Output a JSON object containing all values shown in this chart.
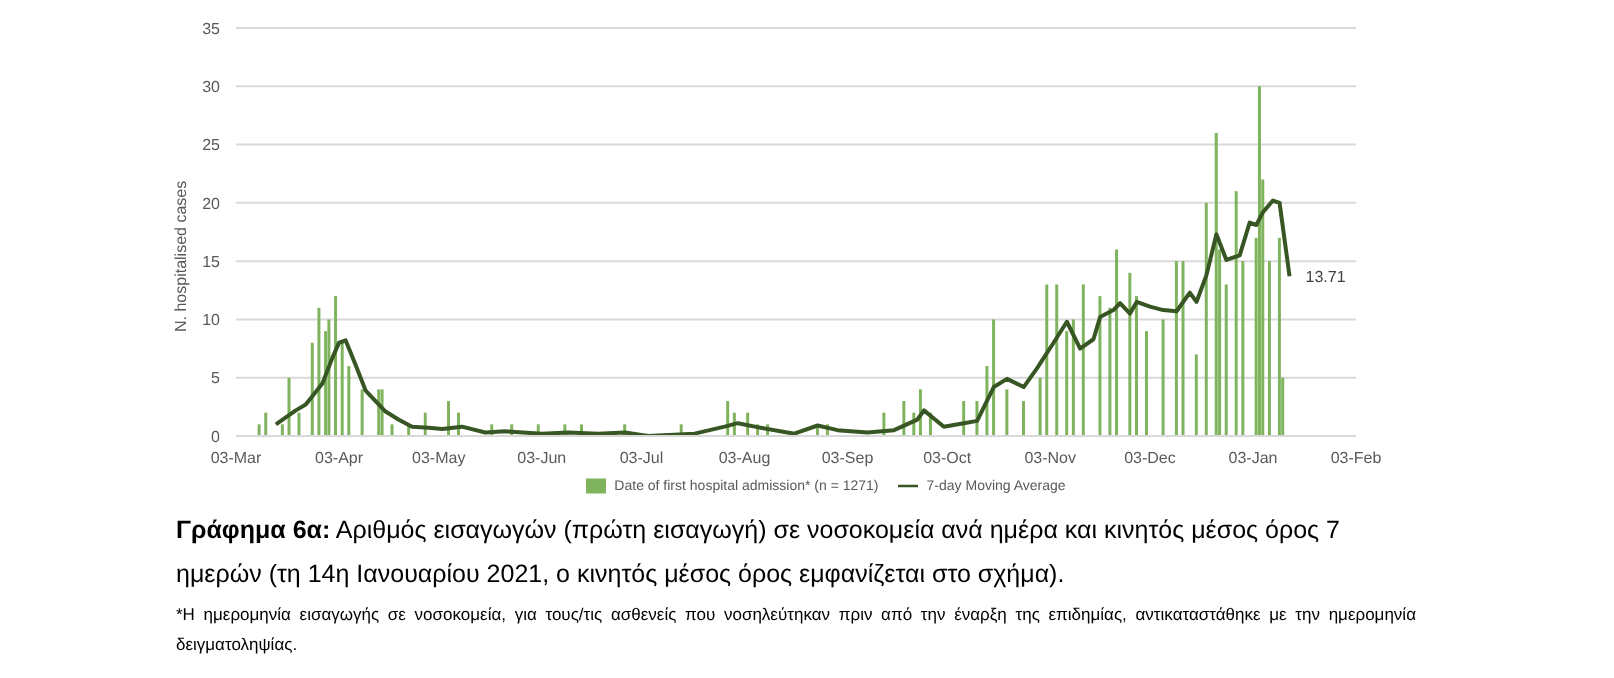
{
  "chart_data": {
    "type": "bar",
    "ylabel": "N. hospitalised cases",
    "xlim": [
      "2020-03-03",
      "2021-02-03"
    ],
    "xticks": [
      {
        "value": "2020-03-03",
        "label": "03-Mar"
      },
      {
        "value": "2020-04-03",
        "label": "03-Apr"
      },
      {
        "value": "2020-05-03",
        "label": "03-May"
      },
      {
        "value": "2020-06-03",
        "label": "03-Jun"
      },
      {
        "value": "2020-07-03",
        "label": "03-Jul"
      },
      {
        "value": "2020-08-03",
        "label": "03-Aug"
      },
      {
        "value": "2020-09-03",
        "label": "03-Sep"
      },
      {
        "value": "2020-10-03",
        "label": "03-Oct"
      },
      {
        "value": "2020-11-03",
        "label": "03-Nov"
      },
      {
        "value": "2020-12-03",
        "label": "03-Dec"
      },
      {
        "value": "2021-01-03",
        "label": "03-Jan"
      },
      {
        "value": "2021-02-03",
        "label": "03-Feb"
      }
    ],
    "ylim": [
      0,
      35
    ],
    "yticks": [
      0,
      5,
      10,
      15,
      20,
      25,
      30,
      35
    ],
    "grid": "y",
    "legend": "bottom",
    "series": [
      {
        "name": "Date of first hospital admission* (n = 1271)",
        "color": "#7fb35e",
        "x": [
          "2020-03-10",
          "2020-03-12",
          "2020-03-17",
          "2020-03-19",
          "2020-03-22",
          "2020-03-26",
          "2020-03-28",
          "2020-03-30",
          "2020-03-31",
          "2020-04-02",
          "2020-04-04",
          "2020-04-06",
          "2020-04-10",
          "2020-04-15",
          "2020-04-16",
          "2020-04-19",
          "2020-04-24",
          "2020-04-29",
          "2020-05-06",
          "2020-05-09",
          "2020-05-19",
          "2020-05-25",
          "2020-06-02",
          "2020-06-10",
          "2020-06-15",
          "2020-06-28",
          "2020-07-15",
          "2020-07-29",
          "2020-07-31",
          "2020-08-04",
          "2020-08-07",
          "2020-08-10",
          "2020-08-25",
          "2020-08-28",
          "2020-09-14",
          "2020-09-20",
          "2020-09-23",
          "2020-09-25",
          "2020-09-28",
          "2020-10-08",
          "2020-10-12",
          "2020-10-15",
          "2020-10-17",
          "2020-10-21",
          "2020-10-26",
          "2020-10-31",
          "2020-11-02",
          "2020-11-05",
          "2020-11-08",
          "2020-11-10",
          "2020-11-13",
          "2020-11-18",
          "2020-11-21",
          "2020-11-23",
          "2020-11-27",
          "2020-11-29",
          "2020-12-02",
          "2020-12-07",
          "2020-12-11",
          "2020-12-13",
          "2020-12-17",
          "2020-12-20",
          "2020-12-23",
          "2020-12-24",
          "2020-12-26",
          "2020-12-29",
          "2020-12-31",
          "2021-01-04",
          "2021-01-05",
          "2021-01-06",
          "2021-01-08",
          "2021-01-11",
          "2021-01-12"
        ],
        "values": [
          1,
          2,
          1,
          5,
          2,
          8,
          11,
          9,
          10,
          12,
          8,
          6,
          4,
          4,
          4,
          1,
          1,
          2,
          3,
          2,
          1,
          1,
          1,
          1,
          1,
          1,
          1,
          3,
          2,
          2,
          1,
          1,
          1,
          1,
          2,
          3,
          2,
          4,
          2,
          3,
          3,
          6,
          10,
          4,
          3,
          5,
          13,
          13,
          9,
          10,
          13,
          12,
          11,
          16,
          14,
          12,
          9,
          10,
          15,
          15,
          7,
          20,
          26,
          16,
          13,
          21,
          15,
          17,
          30,
          22,
          15,
          17,
          5
        ]
      },
      {
        "name": "7-day Moving Average",
        "type": "line",
        "color": "#375623",
        "marker": "none",
        "line_style": "solid",
        "x": [
          "2020-03-15",
          "2020-03-21",
          "2020-03-24",
          "2020-03-29",
          "2020-04-01",
          "2020-04-03",
          "2020-04-05",
          "2020-04-08",
          "2020-04-11",
          "2020-04-15",
          "2020-04-17",
          "2020-04-21",
          "2020-04-25",
          "2020-04-30",
          "2020-05-04",
          "2020-05-10",
          "2020-05-17",
          "2020-05-23",
          "2020-06-03",
          "2020-06-11",
          "2020-06-20",
          "2020-06-28",
          "2020-07-05",
          "2020-07-19",
          "2020-07-28",
          "2020-08-01",
          "2020-08-08",
          "2020-08-18",
          "2020-08-25",
          "2020-08-31",
          "2020-09-09",
          "2020-09-17",
          "2020-09-24",
          "2020-09-26",
          "2020-10-02",
          "2020-10-08",
          "2020-10-12",
          "2020-10-17",
          "2020-10-21",
          "2020-10-26",
          "2020-10-30",
          "2020-11-04",
          "2020-11-08",
          "2020-11-12",
          "2020-11-16",
          "2020-11-18",
          "2020-11-22",
          "2020-11-24",
          "2020-11-27",
          "2020-11-29",
          "2020-12-03",
          "2020-12-07",
          "2020-12-11",
          "2020-12-15",
          "2020-12-17",
          "2020-12-20",
          "2020-12-23",
          "2020-12-26",
          "2020-12-30",
          "2021-01-02",
          "2021-01-04",
          "2021-01-06",
          "2021-01-09",
          "2021-01-11",
          "2021-01-14"
        ],
        "values": [
          1.0,
          2.2,
          2.7,
          4.5,
          6.7,
          8.0,
          8.2,
          6.1,
          3.9,
          2.7,
          2.1,
          1.4,
          0.8,
          0.7,
          0.6,
          0.8,
          0.3,
          0.4,
          0.2,
          0.3,
          0.2,
          0.3,
          0.0,
          0.2,
          0.8,
          1.1,
          0.7,
          0.2,
          0.9,
          0.5,
          0.3,
          0.5,
          1.4,
          2.2,
          0.8,
          1.1,
          1.3,
          4.2,
          4.9,
          4.2,
          5.8,
          8.0,
          9.8,
          7.5,
          8.3,
          10.2,
          10.8,
          11.4,
          10.5,
          11.5,
          11.1,
          10.8,
          10.7,
          12.3,
          11.5,
          13.8,
          17.3,
          15.1,
          15.5,
          18.3,
          18.1,
          19.2,
          20.2,
          20.0,
          13.71
        ]
      }
    ],
    "annotations": [
      {
        "text": "13.71",
        "x": "2021-01-14",
        "y": 13.71
      },
      "Γράφημα 6α: Αριθμός εισαγωγών (πρώτη εισαγωγή) σε νοσοκομεία ανά ημέρα και κινητός μέσος όρος 7 ημερών (τη 14η Ιανουαρίου 2021, ο κινητός μέσος όρος εμφανίζεται στο σχήμα).",
      "*Η ημερομηνία εισαγωγής σε νοσοκομεία, για τους/τις ασθενείς που νοσηλεύτηκαν πριν από την έναρξη της επιδημίας, αντικαταστάθηκε με την ημερομηνία δειγματοληψίας."
    ]
  }
}
